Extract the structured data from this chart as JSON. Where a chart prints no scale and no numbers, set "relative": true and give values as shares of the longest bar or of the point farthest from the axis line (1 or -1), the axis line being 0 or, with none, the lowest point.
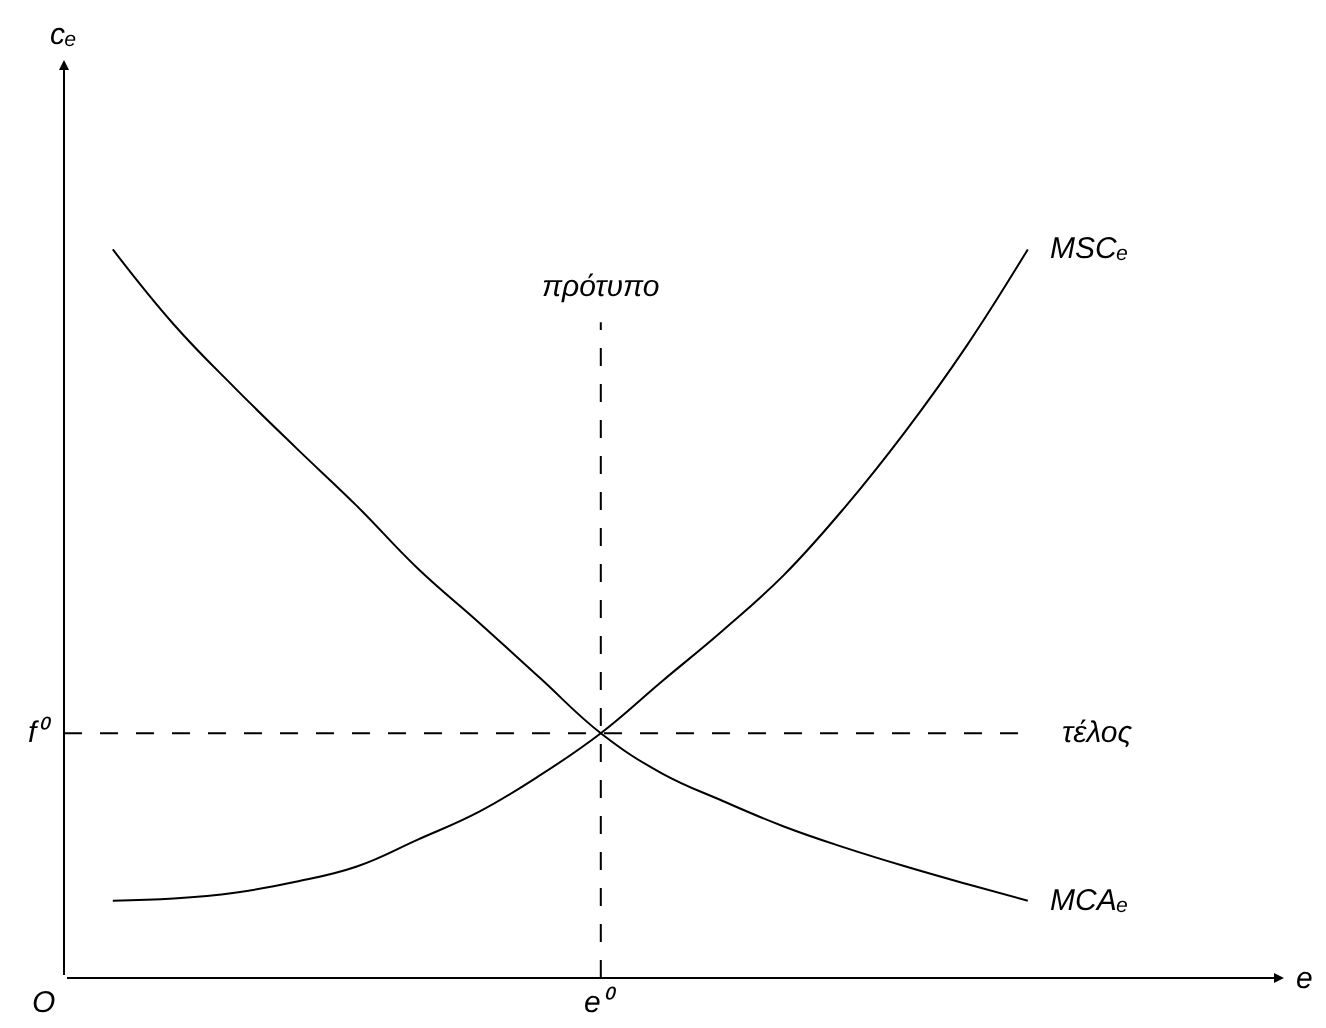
{
  "chart_data": {
    "type": "line",
    "relative": true,
    "categories": [
      null,
      null,
      null,
      null,
      null,
      null,
      null,
      null,
      null,
      null,
      null,
      null,
      null,
      null,
      null,
      null
    ],
    "series": [
      {
        "name": "MSCₑ",
        "color": "#000000",
        "values": [
          0.106,
          0.109,
          0.117,
          0.132,
          0.153,
          0.19,
          0.228,
          0.278,
          0.336,
          0.407,
          0.477,
          0.553,
          0.646,
          0.751,
          0.868,
          1.0
        ]
      },
      {
        "name": "MCAₑ",
        "color": "#000000",
        "values": [
          1.0,
          0.897,
          0.81,
          0.728,
          0.648,
          0.562,
          0.488,
          0.412,
          0.336,
          0.281,
          0.243,
          0.208,
          0.179,
          0.153,
          0.129,
          0.106
        ]
      }
    ],
    "ref_lines": [
      {
        "axis": "x",
        "value": "e⁰",
        "label": "πρότυπο",
        "color": "#000000",
        "line_style": "dashed"
      },
      {
        "axis": "y",
        "value": 0.336,
        "label": "τέλος",
        "color": "#000000",
        "line_style": "dashed"
      }
    ],
    "annotations": [
      "f⁰",
      "O",
      "e",
      "cₑ"
    ],
    "legend": false,
    "marker": "none",
    "line_style": "solid"
  }
}
